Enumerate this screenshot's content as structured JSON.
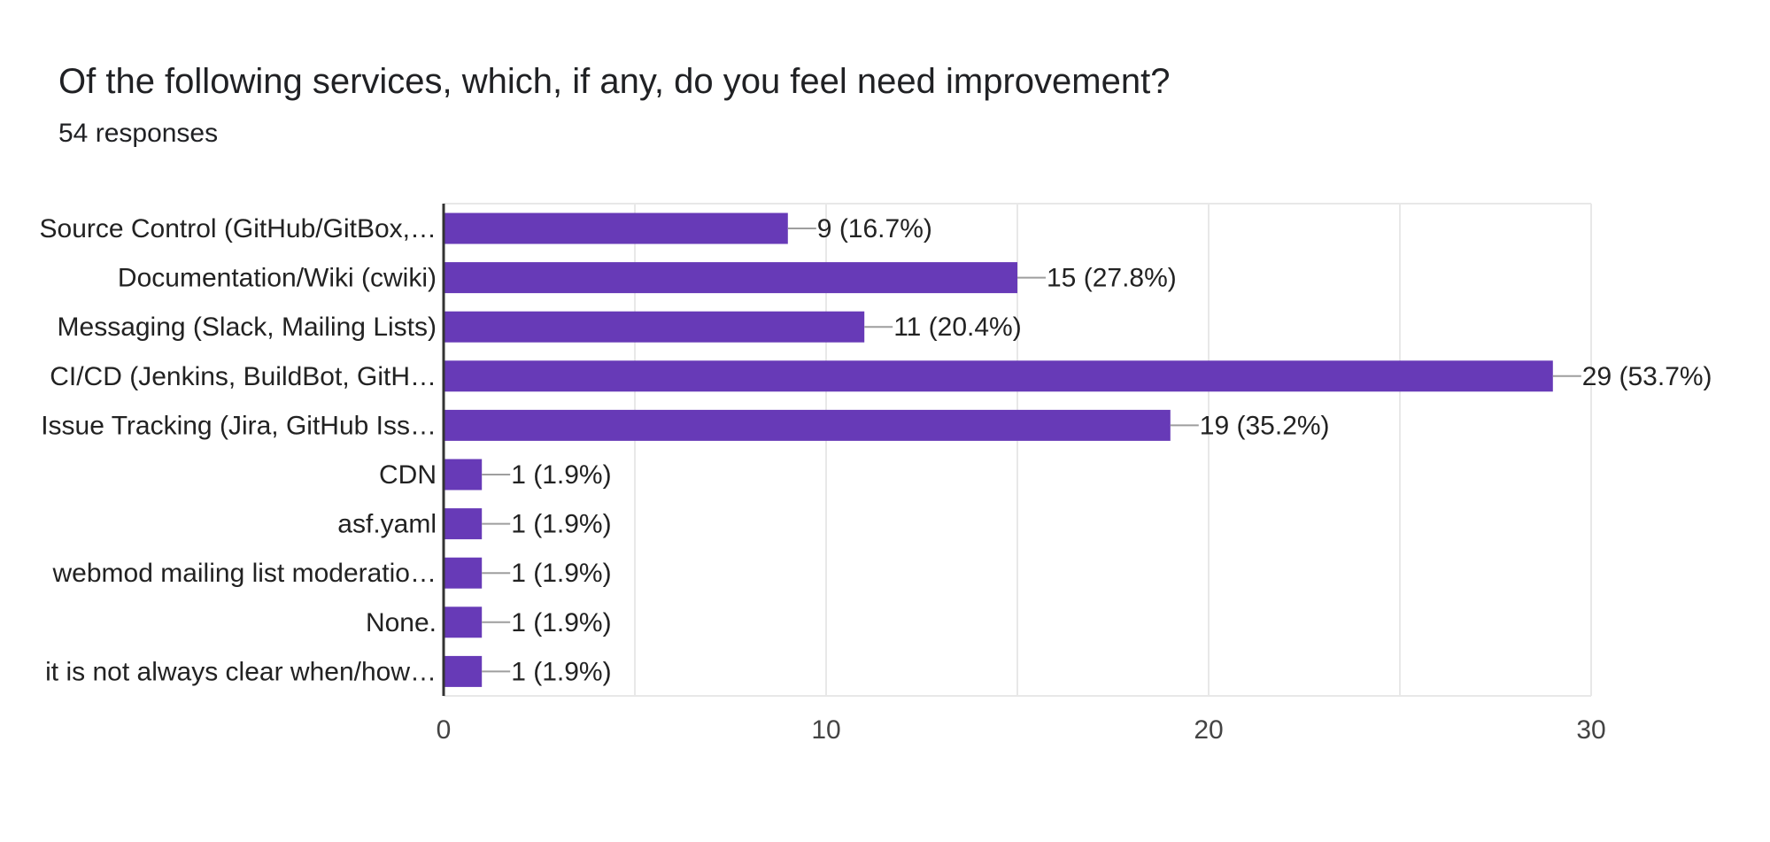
{
  "header": {
    "title": "Of the following services, which, if any, do you feel need improvement?",
    "responses": "54 responses"
  },
  "colors": {
    "bar": "#673ab7",
    "grid": "#e8e8e8",
    "axis": "#333333",
    "leader": "#9e9e9e"
  },
  "chart_data": {
    "type": "bar",
    "orientation": "horizontal",
    "categories": [
      "Source Control (GitHub/GitBox,…",
      "Documentation/Wiki (cwiki)",
      "Messaging (Slack, Mailing Lists)",
      "CI/CD (Jenkins, BuildBot, GitH…",
      "Issue Tracking (Jira, GitHub Iss…",
      "CDN",
      "asf.yaml",
      "webmod mailing list moderatio…",
      "None.",
      "it is not always clear when/how…"
    ],
    "values": [
      9,
      15,
      11,
      29,
      19,
      1,
      1,
      1,
      1,
      1
    ],
    "value_labels": [
      "9 (16.7%)",
      "15 (27.8%)",
      "11 (20.4%)",
      "29 (53.7%)",
      "19 (35.2%)",
      "1 (1.9%)",
      "1 (1.9%)",
      "1 (1.9%)",
      "1 (1.9%)",
      "1 (1.9%)"
    ],
    "xlim": [
      0,
      30
    ],
    "ticks": [
      0,
      10,
      20,
      30
    ],
    "tick_labels": [
      "0",
      "10",
      "20",
      "30"
    ],
    "minor_gridlines": [
      5,
      15,
      25
    ],
    "grid": true,
    "legend": "none"
  }
}
